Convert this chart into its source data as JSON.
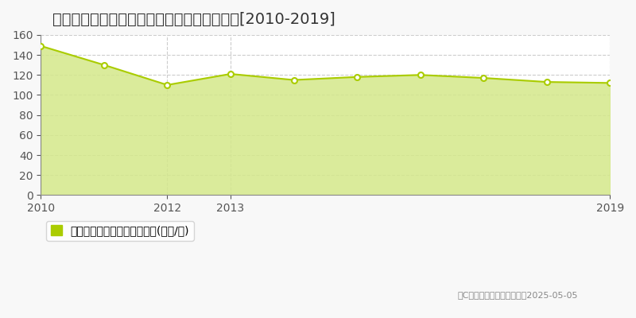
{
  "title": "大阪市東住吉区針中野　マンション価格推移[2010-2019]",
  "x_values": [
    2010,
    2011,
    2012,
    2013,
    2014,
    2015,
    2016,
    2017,
    2018,
    2019
  ],
  "y_values": [
    149,
    130,
    110,
    121,
    115,
    118,
    120,
    117,
    113,
    112
  ],
  "x_ticks": [
    2010,
    2012,
    2013,
    2019
  ],
  "ylim": [
    0,
    160
  ],
  "yticks": [
    0,
    20,
    40,
    60,
    80,
    100,
    120,
    140,
    160
  ],
  "line_color": "#aacc00",
  "fill_color": "#d4e88a",
  "fill_alpha": 0.85,
  "marker_color": "#ffffff",
  "marker_edge_color": "#aacc00",
  "grid_color": "#cccccc",
  "bg_color": "#f8f8f8",
  "plot_bg_color": "#ffffff",
  "legend_label": "マンション価格　平均坪単価(万円/坪)",
  "copyright_text": "（C）土地価格ドットコム　2025-05-05",
  "title_fontsize": 14,
  "tick_fontsize": 10,
  "legend_fontsize": 10
}
